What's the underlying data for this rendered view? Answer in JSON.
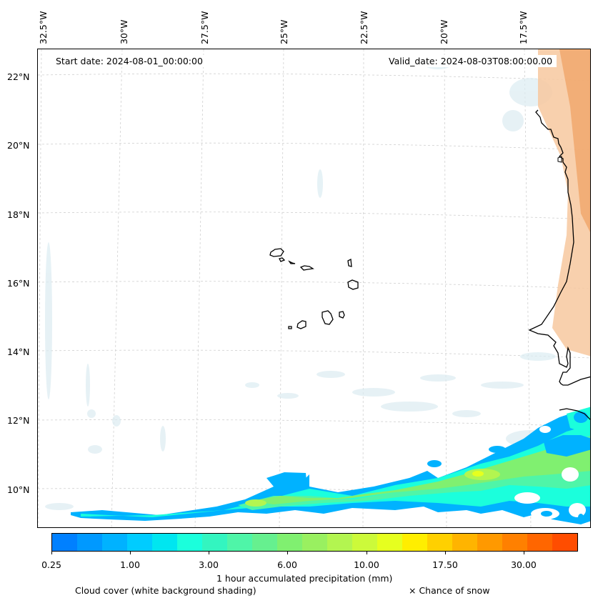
{
  "map": {
    "region": "Cape Verde / West African coast",
    "start_date_label": "Start date: 2024-08-01_00:00:00",
    "valid_date_label": "Valid_date: 2024-08-03T08:00:00.00",
    "longitude_labels": [
      "32.5°W",
      "30°W",
      "27.5°W",
      "25°W",
      "22.5°W",
      "20°W",
      "17.5°W"
    ],
    "latitude_labels": [
      "22°N",
      "20°N",
      "18°N",
      "16°N",
      "14°N",
      "12°N",
      "10°N"
    ],
    "colors": {
      "coastline": "#000000",
      "gridline": "#cccccc",
      "land_heat": "#f0a060",
      "cloud_shading": "#dcecf2"
    }
  },
  "colorbar": {
    "label": "1 hour accumulated precipitation (mm)",
    "tick_labels": [
      "0.25",
      "1.00",
      "3.00",
      "6.00",
      "10.00",
      "17.50",
      "30.00"
    ],
    "colors": [
      "#0080ff",
      "#0099ff",
      "#00b2ff",
      "#00ccff",
      "#00e6f0",
      "#1bffdc",
      "#33f5c0",
      "#4ff5a8",
      "#66f08f",
      "#80f070",
      "#99f060",
      "#b3f550",
      "#ccfa3a",
      "#e6ff1f",
      "#ffee00",
      "#ffd000",
      "#ffb400",
      "#ff9900",
      "#ff8000",
      "#ff6600",
      "#ff4d00"
    ]
  },
  "legend": {
    "cloud_cover": "Cloud cover (white background shading)",
    "snow": "× Chance of snow"
  }
}
